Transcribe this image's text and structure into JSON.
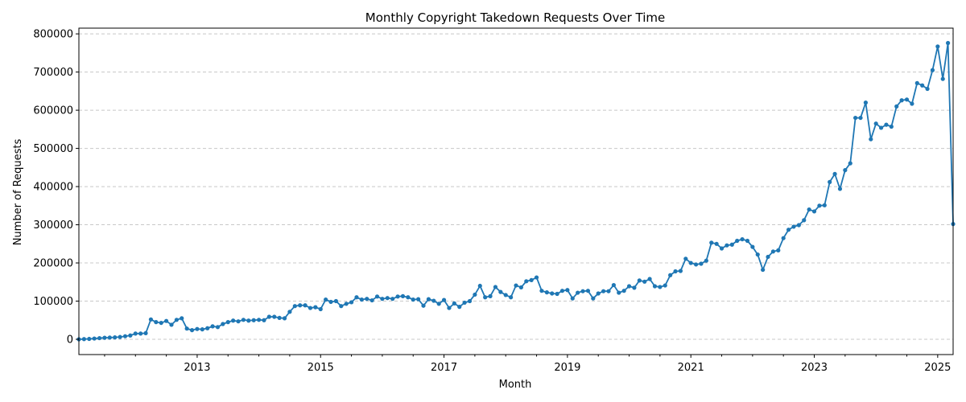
{
  "chart_data": {
    "type": "line",
    "title": "Monthly Copyright Takedown Requests Over Time",
    "xlabel": "Month",
    "ylabel": "Number of Requests",
    "x_start": "2011-02",
    "x_end": "2025-04",
    "xlim": [
      "2011-02",
      "2025-04"
    ],
    "ylim": [
      -40000,
      815000
    ],
    "x_tick_labels": [
      "2013",
      "2015",
      "2017",
      "2019",
      "2021",
      "2023",
      "2025"
    ],
    "y_tick_values": [
      0,
      100000,
      200000,
      300000,
      400000,
      500000,
      600000,
      700000,
      800000
    ],
    "y_tick_labels": [
      "0",
      "100000",
      "200000",
      "300000",
      "400000",
      "500000",
      "600000",
      "700000",
      "800000"
    ],
    "grid": "y-dashed",
    "line_color": "#1f77b4",
    "series": [
      {
        "values": [
          0,
          500,
          1000,
          2000,
          3000,
          4000,
          4500,
          5000,
          6000,
          8000,
          10000,
          15000,
          15000,
          16000,
          52000,
          45000,
          43000,
          48000,
          38000,
          51000,
          55000,
          28000,
          24000,
          27000,
          26000,
          29000,
          34000,
          32000,
          40000,
          45000,
          49000,
          47000,
          51000,
          49000,
          50000,
          51000,
          50000,
          59000,
          59000,
          56000,
          55000,
          72000,
          87000,
          89000,
          89000,
          82000,
          84000,
          79000,
          104000,
          98000,
          100000,
          87000,
          93000,
          97000,
          110000,
          104000,
          106000,
          102000,
          112000,
          106000,
          108000,
          106000,
          112000,
          113000,
          110000,
          104000,
          105000,
          88000,
          105000,
          101000,
          93000,
          103000,
          82000,
          94000,
          85000,
          96000,
          100000,
          117000,
          140000,
          110000,
          113000,
          137000,
          124000,
          116000,
          110000,
          141000,
          136000,
          152000,
          155000,
          162000,
          127000,
          123000,
          120000,
          119000,
          127000,
          129000,
          107000,
          122000,
          126000,
          127000,
          107000,
          120000,
          126000,
          126000,
          142000,
          122000,
          127000,
          139000,
          135000,
          154000,
          151000,
          158000,
          139000,
          137000,
          141000,
          168000,
          178000,
          179000,
          211000,
          200000,
          196000,
          198000,
          206000,
          253000,
          250000,
          238000,
          246000,
          248000,
          258000,
          262000,
          258000,
          242000,
          222000,
          182000,
          216000,
          230000,
          233000,
          265000,
          287000,
          295000,
          299000,
          312000,
          340000,
          335000,
          350000,
          351000,
          412000,
          433000,
          394000,
          443000,
          461000,
          580000,
          580000,
          620000,
          524000,
          565000,
          554000,
          562000,
          557000,
          610000,
          626000,
          628000,
          617000,
          671000,
          665000,
          656000,
          705000,
          767000,
          682000,
          776000,
          302000
        ]
      }
    ]
  }
}
